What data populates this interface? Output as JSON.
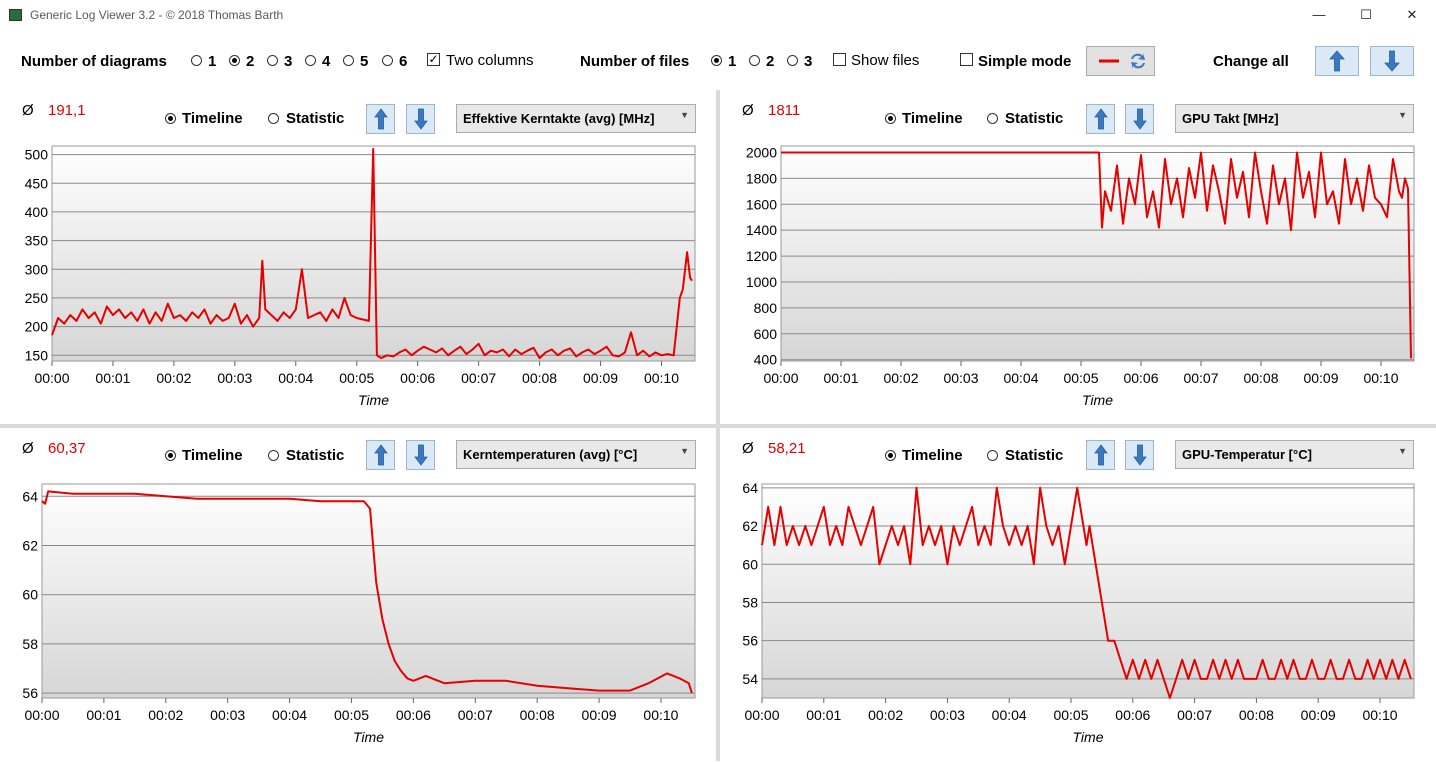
{
  "window": {
    "title": "Generic Log Viewer 3.2 - © 2018 Thomas Barth",
    "minimize": "—",
    "maximize": "☐",
    "close": "✕"
  },
  "toolbar": {
    "diagrams_label": "Number of diagrams",
    "diagram_options": [
      "1",
      "2",
      "3",
      "4",
      "5",
      "6"
    ],
    "diagram_selected": "2",
    "two_columns_label": "Two columns",
    "two_columns_checked": true,
    "files_label": "Number of files",
    "file_options": [
      "1",
      "2",
      "3"
    ],
    "file_selected": "1",
    "show_files_label": "Show files",
    "simple_mode_label": "Simple mode",
    "change_all_label": "Change all"
  },
  "panels": [
    {
      "avg_symbol": "Ø",
      "avg_value": "191,1",
      "timeline_label": "Timeline",
      "statistic_label": "Statistic",
      "selected_mode": "Timeline",
      "channel": "Effektive Kerntakte (avg) [MHz]",
      "xlabel": "Time"
    },
    {
      "avg_symbol": "Ø",
      "avg_value": "1811",
      "timeline_label": "Timeline",
      "statistic_label": "Statistic",
      "selected_mode": "Timeline",
      "channel": "GPU Takt [MHz]",
      "xlabel": "Time"
    },
    {
      "avg_symbol": "Ø",
      "avg_value": "60,37",
      "timeline_label": "Timeline",
      "statistic_label": "Statistic",
      "selected_mode": "Timeline",
      "channel": "Kerntemperaturen (avg) [°C]",
      "xlabel": "Time"
    },
    {
      "avg_symbol": "Ø",
      "avg_value": "58,21",
      "timeline_label": "Timeline",
      "statistic_label": "Statistic",
      "selected_mode": "Timeline",
      "channel": "GPU-Temperatur [°C]",
      "xlabel": "Time"
    }
  ],
  "colors": {
    "line": "#e60000",
    "avg": "#e00000",
    "arrow": "#3a78c2",
    "grid": "#8a8a8a"
  },
  "chart_data": [
    {
      "type": "line",
      "xlabel": "Time",
      "x_ticks": [
        "00:00",
        "00:01",
        "00:02",
        "00:03",
        "00:04",
        "00:05",
        "00:06",
        "00:07",
        "00:08",
        "00:09",
        "00:10"
      ],
      "xlim": [
        0,
        10.55
      ],
      "y_ticks": [
        150,
        200,
        250,
        300,
        350,
        400,
        450,
        500
      ],
      "ylim": [
        140,
        515
      ],
      "x": [
        0,
        0.1,
        0.2,
        0.3,
        0.4,
        0.5,
        0.6,
        0.7,
        0.8,
        0.9,
        1.0,
        1.1,
        1.2,
        1.3,
        1.4,
        1.5,
        1.6,
        1.7,
        1.8,
        1.9,
        2.0,
        2.1,
        2.2,
        2.3,
        2.4,
        2.5,
        2.6,
        2.7,
        2.8,
        2.9,
        3.0,
        3.1,
        3.2,
        3.3,
        3.4,
        3.45,
        3.5,
        3.6,
        3.7,
        3.8,
        3.9,
        4.0,
        4.1,
        4.2,
        4.3,
        4.4,
        4.5,
        4.6,
        4.7,
        4.8,
        4.9,
        5.0,
        5.2,
        5.27,
        5.33,
        5.4,
        5.5,
        5.6,
        5.7,
        5.8,
        5.9,
        6.0,
        6.1,
        6.2,
        6.3,
        6.4,
        6.5,
        6.6,
        6.7,
        6.8,
        6.9,
        7.0,
        7.1,
        7.2,
        7.3,
        7.4,
        7.5,
        7.6,
        7.7,
        7.8,
        7.9,
        8.0,
        8.1,
        8.2,
        8.3,
        8.4,
        8.5,
        8.6,
        8.7,
        8.8,
        8.9,
        9.0,
        9.1,
        9.2,
        9.3,
        9.4,
        9.5,
        9.6,
        9.7,
        9.8,
        9.9,
        10.0,
        10.1,
        10.2,
        10.3,
        10.35,
        10.42,
        10.47,
        10.5
      ],
      "values": [
        185,
        215,
        205,
        220,
        210,
        230,
        215,
        225,
        205,
        235,
        220,
        230,
        215,
        225,
        210,
        230,
        205,
        225,
        210,
        240,
        215,
        220,
        210,
        225,
        215,
        230,
        205,
        220,
        210,
        215,
        240,
        205,
        220,
        200,
        215,
        315,
        230,
        220,
        210,
        225,
        215,
        230,
        300,
        215,
        220,
        225,
        210,
        230,
        215,
        250,
        220,
        215,
        210,
        510,
        150,
        145,
        150,
        148,
        155,
        160,
        150,
        158,
        165,
        160,
        155,
        162,
        150,
        158,
        165,
        152,
        160,
        170,
        150,
        158,
        155,
        160,
        148,
        160,
        152,
        158,
        163,
        145,
        155,
        160,
        150,
        158,
        162,
        148,
        155,
        160,
        152,
        158,
        165,
        150,
        148,
        155,
        190,
        150,
        158,
        148,
        155,
        150,
        152,
        150,
        250,
        265,
        330,
        285,
        280
      ]
    },
    {
      "type": "line",
      "xlabel": "Time",
      "x_ticks": [
        "00:00",
        "00:01",
        "00:02",
        "00:03",
        "00:04",
        "00:05",
        "00:06",
        "00:07",
        "00:08",
        "00:09",
        "00:10"
      ],
      "xlim": [
        0,
        10.55
      ],
      "y_ticks": [
        400,
        600,
        800,
        1000,
        1200,
        1400,
        1600,
        1800,
        2000
      ],
      "ylim": [
        390,
        2050
      ],
      "x": [
        0,
        1,
        2,
        3,
        4,
        5,
        5.3,
        5.35,
        5.4,
        5.5,
        5.6,
        5.7,
        5.8,
        5.9,
        6.0,
        6.1,
        6.2,
        6.3,
        6.4,
        6.5,
        6.6,
        6.7,
        6.8,
        6.9,
        7.0,
        7.1,
        7.2,
        7.3,
        7.4,
        7.5,
        7.6,
        7.7,
        7.8,
        7.9,
        8.0,
        8.1,
        8.2,
        8.3,
        8.4,
        8.5,
        8.6,
        8.7,
        8.8,
        8.9,
        9.0,
        9.1,
        9.2,
        9.3,
        9.4,
        9.5,
        9.6,
        9.7,
        9.8,
        9.9,
        10.0,
        10.1,
        10.2,
        10.3,
        10.35,
        10.4,
        10.45,
        10.5
      ],
      "values": [
        2000,
        2000,
        2000,
        2000,
        2000,
        2000,
        2000,
        1420,
        1700,
        1550,
        1900,
        1450,
        1800,
        1600,
        1980,
        1500,
        1700,
        1420,
        1950,
        1600,
        1800,
        1500,
        1880,
        1650,
        2000,
        1550,
        1900,
        1700,
        1450,
        1950,
        1650,
        1850,
        1500,
        2000,
        1700,
        1450,
        1900,
        1600,
        1800,
        1400,
        2000,
        1650,
        1850,
        1500,
        2000,
        1600,
        1700,
        1450,
        1950,
        1600,
        1800,
        1550,
        1900,
        1650,
        1600,
        1500,
        1950,
        1700,
        1650,
        1800,
        1720,
        410
      ]
    },
    {
      "type": "line",
      "xlabel": "Time",
      "x_ticks": [
        "00:00",
        "00:01",
        "00:02",
        "00:03",
        "00:04",
        "00:05",
        "00:06",
        "00:07",
        "00:08",
        "00:09",
        "00:10"
      ],
      "xlim": [
        0,
        10.55
      ],
      "y_ticks": [
        56,
        58,
        60,
        62,
        64
      ],
      "ylim": [
        55.8,
        64.5
      ],
      "x": [
        0,
        0.05,
        0.1,
        0.5,
        1,
        1.5,
        2,
        2.5,
        3,
        3.5,
        4,
        4.5,
        5,
        5.2,
        5.3,
        5.35,
        5.4,
        5.5,
        5.6,
        5.7,
        5.8,
        5.9,
        6.0,
        6.2,
        6.5,
        7,
        7.5,
        8,
        8.5,
        9,
        9.5,
        9.8,
        10.1,
        10.3,
        10.45,
        10.5
      ],
      "values": [
        63.8,
        63.7,
        64.2,
        64.1,
        64.1,
        64.1,
        64.0,
        63.9,
        63.9,
        63.9,
        63.9,
        63.8,
        63.8,
        63.8,
        63.5,
        62.0,
        60.5,
        59.0,
        58.0,
        57.3,
        56.9,
        56.6,
        56.5,
        56.7,
        56.4,
        56.5,
        56.5,
        56.3,
        56.2,
        56.1,
        56.1,
        56.4,
        56.8,
        56.6,
        56.4,
        56.0
      ]
    },
    {
      "type": "line",
      "xlabel": "Time",
      "x_ticks": [
        "00:00",
        "00:01",
        "00:02",
        "00:03",
        "00:04",
        "00:05",
        "00:06",
        "00:07",
        "00:08",
        "00:09",
        "00:10"
      ],
      "xlim": [
        0,
        10.55
      ],
      "y_ticks": [
        54,
        56,
        58,
        60,
        62,
        64
      ],
      "ylim": [
        53,
        64.2
      ],
      "x": [
        0,
        0.1,
        0.15,
        0.2,
        0.3,
        0.4,
        0.5,
        0.6,
        0.7,
        0.8,
        0.9,
        1.0,
        1.1,
        1.2,
        1.3,
        1.4,
        1.5,
        1.6,
        1.7,
        1.8,
        1.9,
        2.0,
        2.1,
        2.2,
        2.3,
        2.4,
        2.5,
        2.6,
        2.7,
        2.8,
        2.9,
        3.0,
        3.1,
        3.2,
        3.3,
        3.4,
        3.5,
        3.6,
        3.7,
        3.8,
        3.9,
        4.0,
        4.1,
        4.2,
        4.3,
        4.4,
        4.5,
        4.6,
        4.7,
        4.8,
        4.9,
        5.0,
        5.1,
        5.2,
        5.25,
        5.3,
        5.4,
        5.5,
        5.6,
        5.7,
        5.8,
        5.9,
        6.0,
        6.1,
        6.2,
        6.3,
        6.4,
        6.5,
        6.6,
        6.7,
        6.8,
        6.9,
        7.0,
        7.1,
        7.2,
        7.3,
        7.4,
        7.5,
        7.6,
        7.7,
        7.8,
        7.9,
        8.0,
        8.1,
        8.2,
        8.3,
        8.4,
        8.5,
        8.6,
        8.7,
        8.8,
        8.9,
        9.0,
        9.1,
        9.2,
        9.3,
        9.4,
        9.5,
        9.6,
        9.7,
        9.8,
        9.9,
        10.0,
        10.1,
        10.2,
        10.3,
        10.4,
        10.5
      ],
      "values": [
        61,
        63,
        62,
        61,
        63,
        61,
        62,
        61,
        62,
        61,
        62,
        63,
        61,
        62,
        61,
        63,
        62,
        61,
        62,
        63,
        60,
        61,
        62,
        61,
        62,
        60,
        64,
        61,
        62,
        61,
        62,
        60,
        62,
        61,
        62,
        63,
        61,
        62,
        61,
        64,
        62,
        61,
        62,
        61,
        62,
        60,
        64,
        62,
        61,
        62,
        60,
        62,
        64,
        62,
        61,
        62,
        60,
        58,
        56,
        56,
        55,
        54,
        55,
        54,
        55,
        54,
        55,
        54,
        53,
        54,
        55,
        54,
        55,
        54,
        54,
        55,
        54,
        55,
        54,
        55,
        54,
        54,
        54,
        55,
        54,
        54,
        55,
        54,
        55,
        54,
        54,
        55,
        54,
        54,
        55,
        54,
        54,
        55,
        54,
        54,
        55,
        54,
        55,
        54,
        55,
        54,
        55,
        54
      ]
    }
  ]
}
